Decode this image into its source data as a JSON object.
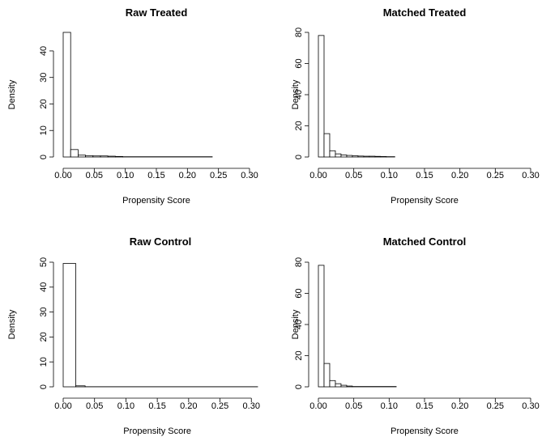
{
  "chart_data": [
    {
      "type": "bar",
      "title": "Raw Treated",
      "xlabel": "Propensity Score",
      "ylabel": "Density",
      "bin_width": 0.012,
      "bins": [
        {
          "x0": 0.0,
          "x1": 0.012,
          "value": 47
        },
        {
          "x0": 0.012,
          "x1": 0.024,
          "value": 2.8
        },
        {
          "x0": 0.024,
          "x1": 0.036,
          "value": 0.7
        },
        {
          "x0": 0.036,
          "x1": 0.048,
          "value": 0.5
        },
        {
          "x0": 0.048,
          "x1": 0.06,
          "value": 0.4
        },
        {
          "x0": 0.06,
          "x1": 0.072,
          "value": 0.4
        },
        {
          "x0": 0.072,
          "x1": 0.084,
          "value": 0.3
        },
        {
          "x0": 0.084,
          "x1": 0.096,
          "value": 0.2
        },
        {
          "x0": 0.096,
          "x1": 0.24,
          "value": 0.1
        }
      ],
      "xlim": [
        0,
        0.3
      ],
      "ylim": [
        0,
        47
      ],
      "xticks": [
        "0.00",
        "0.05",
        "0.10",
        "0.15",
        "0.20",
        "0.25",
        "0.30"
      ],
      "yticks": [
        "0",
        "10",
        "20",
        "30",
        "40"
      ]
    },
    {
      "type": "bar",
      "title": "Matched Treated",
      "xlabel": "Propensity Score",
      "ylabel": "Density",
      "bin_width": 0.008,
      "bins": [
        {
          "x0": 0.0,
          "x1": 0.008,
          "value": 78
        },
        {
          "x0": 0.008,
          "x1": 0.016,
          "value": 15
        },
        {
          "x0": 0.016,
          "x1": 0.024,
          "value": 4
        },
        {
          "x0": 0.024,
          "x1": 0.032,
          "value": 2
        },
        {
          "x0": 0.032,
          "x1": 0.04,
          "value": 1.3
        },
        {
          "x0": 0.04,
          "x1": 0.048,
          "value": 1
        },
        {
          "x0": 0.048,
          "x1": 0.056,
          "value": 0.8
        },
        {
          "x0": 0.056,
          "x1": 0.064,
          "value": 0.6
        },
        {
          "x0": 0.064,
          "x1": 0.072,
          "value": 0.5
        },
        {
          "x0": 0.072,
          "x1": 0.08,
          "value": 0.5
        },
        {
          "x0": 0.08,
          "x1": 0.088,
          "value": 0.4
        },
        {
          "x0": 0.088,
          "x1": 0.096,
          "value": 0.3
        },
        {
          "x0": 0.096,
          "x1": 0.108,
          "value": 0.2
        }
      ],
      "xlim": [
        0,
        0.3
      ],
      "ylim": [
        0,
        80
      ],
      "xticks": [
        "0.00",
        "0.05",
        "0.10",
        "0.15",
        "0.20",
        "0.25",
        "0.30"
      ],
      "yticks": [
        "0",
        "20",
        "40",
        "60",
        "80"
      ]
    },
    {
      "type": "bar",
      "title": "Raw Control",
      "xlabel": "Propensity Score",
      "ylabel": "Density",
      "bin_width": 0.02,
      "bins": [
        {
          "x0": 0.0,
          "x1": 0.02,
          "value": 49.5
        },
        {
          "x0": 0.02,
          "x1": 0.035,
          "value": 0.4
        },
        {
          "x0": 0.035,
          "x1": 0.31,
          "value": 0.05
        }
      ],
      "xlim": [
        0,
        0.31
      ],
      "ylim": [
        0,
        50
      ],
      "xticks": [
        "0.00",
        "0.05",
        "0.10",
        "0.15",
        "0.20",
        "0.25",
        "0.30"
      ],
      "yticks": [
        "0",
        "10",
        "20",
        "30",
        "40",
        "50"
      ]
    },
    {
      "type": "bar",
      "title": "Matched Control",
      "xlabel": "Propensity Score",
      "ylabel": "Density",
      "bin_width": 0.008,
      "bins": [
        {
          "x0": 0.0,
          "x1": 0.008,
          "value": 78
        },
        {
          "x0": 0.008,
          "x1": 0.016,
          "value": 15
        },
        {
          "x0": 0.016,
          "x1": 0.024,
          "value": 4
        },
        {
          "x0": 0.024,
          "x1": 0.032,
          "value": 2
        },
        {
          "x0": 0.032,
          "x1": 0.04,
          "value": 1
        },
        {
          "x0": 0.04,
          "x1": 0.048,
          "value": 0.5
        },
        {
          "x0": 0.048,
          "x1": 0.11,
          "value": 0.2
        }
      ],
      "xlim": [
        0,
        0.3
      ],
      "ylim": [
        0,
        80
      ],
      "xticks": [
        "0.00",
        "0.05",
        "0.10",
        "0.15",
        "0.20",
        "0.25",
        "0.30"
      ],
      "yticks": [
        "0",
        "20",
        "40",
        "60",
        "80"
      ]
    }
  ]
}
